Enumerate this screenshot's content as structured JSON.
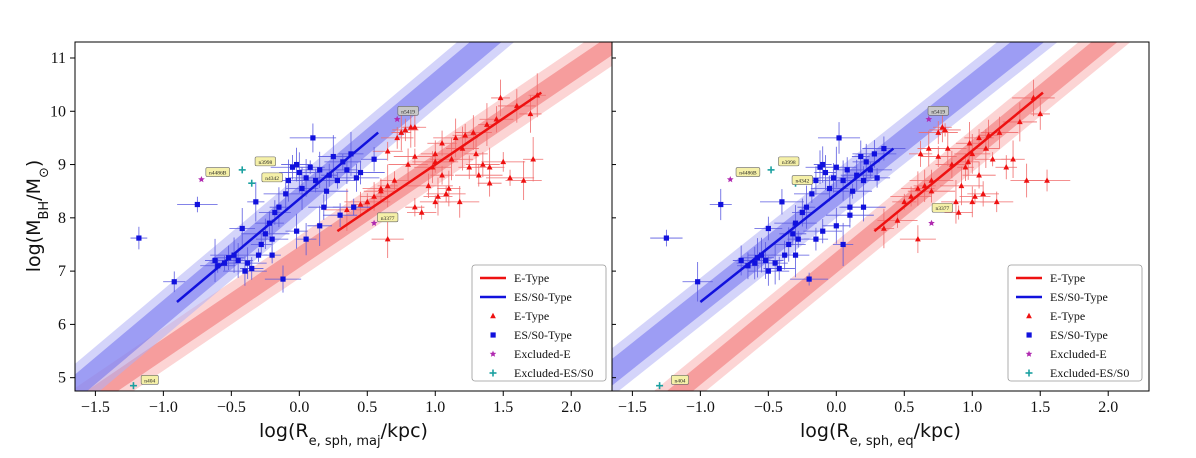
{
  "colors": {
    "e_type": "#ee1111",
    "s0_type": "#1111dd",
    "e_band_dark": "#f07070",
    "e_band_light": "#f9b0b0",
    "s0_band_dark": "#7070ee",
    "s0_band_light": "#b0b0f6",
    "excluded_e": "#b02ab0",
    "excluded_s0": "#1aa0a0",
    "errbar_e": "#f06b6b",
    "errbar_s0": "#5a5ae0",
    "annot_fill": "#f5f0a8"
  },
  "ylabel": "log(M_BH/M_⊙)",
  "chart_data": [
    {
      "type": "scatter",
      "panel": "left",
      "xlabel_main": "log(R",
      "xlabel_sub": "e, sph, maj",
      "xlabel_tail": "/kpc)",
      "xlim": [
        -1.65,
        2.3
      ],
      "ylim": [
        4.75,
        11.3
      ],
      "xticks": [
        -1.5,
        -1.0,
        -0.5,
        0.0,
        0.5,
        1.0,
        1.5,
        2.0
      ],
      "xtick_labels": [
        "−1.5",
        "−1.0",
        "−0.5",
        "0.0",
        "0.5",
        "1.0",
        "1.5",
        "2.0"
      ],
      "yticks": [
        5,
        6,
        7,
        8,
        9,
        10,
        11
      ],
      "ytick_labels": [
        "5",
        "6",
        "7",
        "8",
        "9",
        "10",
        "11"
      ],
      "fits": {
        "e": {
          "x": [
            0.28,
            1.78
          ],
          "y": [
            7.75,
            10.35
          ],
          "band_inner": 0.2,
          "band_outer": 0.4
        },
        "s0": {
          "x": [
            -0.9,
            0.58
          ],
          "y": [
            6.42,
            9.6
          ],
          "band_inner": 0.25,
          "band_outer": 0.45
        }
      },
      "legend": [
        "E-Type",
        "ES/S0-Type",
        "E-Type",
        "ES/S0-Type",
        "Excluded-E",
        "Excluded-ES/S0"
      ],
      "e_points": [
        [
          0.35,
          8.15
        ],
        [
          0.45,
          8.25
        ],
        [
          0.5,
          8.3
        ],
        [
          0.55,
          8.4
        ],
        [
          0.6,
          8.55
        ],
        [
          0.65,
          8.6
        ],
        [
          0.7,
          8.7
        ],
        [
          0.72,
          9.5
        ],
        [
          0.75,
          9.6
        ],
        [
          0.78,
          9.65
        ],
        [
          0.82,
          9.7
        ],
        [
          0.85,
          9.7
        ],
        [
          0.65,
          9.25
        ],
        [
          0.6,
          8.5
        ],
        [
          0.8,
          9.0
        ],
        [
          0.85,
          8.2
        ],
        [
          0.9,
          8.1
        ],
        [
          0.95,
          8.6
        ],
        [
          0.98,
          8.95
        ],
        [
          1.0,
          9.05
        ],
        [
          1.0,
          9.2
        ],
        [
          1.02,
          8.4
        ],
        [
          1.05,
          9.4
        ],
        [
          1.05,
          8.8
        ],
        [
          1.08,
          8.45
        ],
        [
          1.1,
          8.55
        ],
        [
          1.12,
          9.1
        ],
        [
          1.15,
          9.5
        ],
        [
          1.18,
          8.3
        ],
        [
          1.2,
          9.3
        ],
        [
          1.22,
          9.55
        ],
        [
          1.25,
          8.95
        ],
        [
          1.28,
          9.6
        ],
        [
          1.3,
          9.2
        ],
        [
          1.32,
          8.8
        ],
        [
          1.35,
          9.0
        ],
        [
          1.38,
          9.75
        ],
        [
          1.4,
          8.95
        ],
        [
          1.45,
          9.85
        ],
        [
          1.48,
          10.25
        ],
        [
          1.5,
          9.05
        ],
        [
          1.55,
          8.75
        ],
        [
          1.6,
          10.1
        ],
        [
          1.65,
          8.7
        ],
        [
          1.7,
          9.95
        ],
        [
          1.72,
          9.1
        ],
        [
          1.75,
          10.3
        ],
        [
          0.65,
          7.6
        ],
        [
          0.85,
          9.15
        ],
        [
          1.0,
          8.3
        ],
        [
          1.4,
          8.65
        ]
      ],
      "s0_points": [
        [
          -1.18,
          7.62
        ],
        [
          -0.92,
          6.8
        ],
        [
          -0.75,
          8.25
        ],
        [
          -0.62,
          7.2
        ],
        [
          -0.6,
          7.1
        ],
        [
          -0.55,
          7.15
        ],
        [
          -0.52,
          7.25
        ],
        [
          -0.48,
          7.3
        ],
        [
          -0.45,
          7.2
        ],
        [
          -0.42,
          7.8
        ],
        [
          -0.38,
          7.15
        ],
        [
          -0.35,
          7.05
        ],
        [
          -0.32,
          8.3
        ],
        [
          -0.3,
          7.3
        ],
        [
          -0.28,
          7.5
        ],
        [
          -0.25,
          7.7
        ],
        [
          -0.22,
          7.9
        ],
        [
          -0.2,
          7.6
        ],
        [
          -0.18,
          8.1
        ],
        [
          -0.15,
          8.2
        ],
        [
          -0.12,
          6.85
        ],
        [
          -0.1,
          8.45
        ],
        [
          -0.08,
          8.7
        ],
        [
          -0.05,
          8.95
        ],
        [
          -0.02,
          9.0
        ],
        [
          0.0,
          8.85
        ],
        [
          0.02,
          8.55
        ],
        [
          0.05,
          8.75
        ],
        [
          0.08,
          8.95
        ],
        [
          0.1,
          9.5
        ],
        [
          0.12,
          8.7
        ],
        [
          0.15,
          8.9
        ],
        [
          0.18,
          8.2
        ],
        [
          0.2,
          8.5
        ],
        [
          0.22,
          8.8
        ],
        [
          0.25,
          9.15
        ],
        [
          0.28,
          8.7
        ],
        [
          0.32,
          9.05
        ],
        [
          0.35,
          8.9
        ],
        [
          0.38,
          9.2
        ],
        [
          0.42,
          8.75
        ],
        [
          0.45,
          8.85
        ],
        [
          0.05,
          7.6
        ],
        [
          -0.02,
          7.75
        ],
        [
          0.15,
          7.85
        ],
        [
          0.3,
          8.05
        ],
        [
          0.4,
          8.2
        ],
        [
          0.55,
          9.1
        ],
        [
          -0.4,
          7.0
        ],
        [
          -0.2,
          7.3
        ]
      ],
      "excluded_e": [
        [
          -0.72,
          8.72
        ],
        [
          0.72,
          9.85
        ],
        [
          0.55,
          7.9
        ]
      ],
      "excluded_s0": [
        [
          -0.42,
          8.9
        ],
        [
          -0.35,
          8.65
        ],
        [
          -1.22,
          4.85
        ]
      ],
      "annotations": [
        {
          "text": "n5419",
          "x": 0.8,
          "y": 10.0
        },
        {
          "text": "n4486B",
          "x": -0.6,
          "y": 8.85
        },
        {
          "text": "n3998",
          "x": -0.25,
          "y": 9.05
        },
        {
          "text": "n4342",
          "x": -0.2,
          "y": 8.75
        },
        {
          "text": "n3377",
          "x": 0.65,
          "y": 8.0
        },
        {
          "text": "n404",
          "x": -1.1,
          "y": 4.95
        }
      ]
    },
    {
      "type": "scatter",
      "panel": "right",
      "xlabel_main": "log(R",
      "xlabel_sub": "e, sph, eq",
      "xlabel_tail": "/kpc)",
      "xlim": [
        -1.65,
        2.3
      ],
      "ylim": [
        4.75,
        11.3
      ],
      "xticks": [
        -1.5,
        -1.0,
        -0.5,
        0.0,
        0.5,
        1.0,
        1.5,
        2.0
      ],
      "xtick_labels": [
        "−1.5",
        "−1.0",
        "−0.5",
        "0.0",
        "0.5",
        "1.0",
        "1.5",
        "2.0"
      ],
      "yticks": [
        5,
        6,
        7,
        8,
        9,
        10,
        11
      ],
      "ytick_labels": [
        "5",
        "6",
        "7",
        "8",
        "9",
        "10",
        "11"
      ],
      "fits": {
        "e": {
          "x": [
            0.28,
            1.52
          ],
          "y": [
            7.75,
            10.35
          ],
          "band_inner": 0.2,
          "band_outer": 0.4
        },
        "s0": {
          "x": [
            -1.0,
            0.42
          ],
          "y": [
            6.42,
            9.3
          ],
          "band_inner": 0.25,
          "band_outer": 0.45
        }
      },
      "legend": [
        "E-Type",
        "ES/S0-Type",
        "E-Type",
        "ES/S0-Type",
        "Excluded-E",
        "Excluded-ES/S0"
      ],
      "e_points": [
        [
          0.35,
          7.8
        ],
        [
          0.45,
          7.95
        ],
        [
          0.5,
          8.3
        ],
        [
          0.55,
          8.4
        ],
        [
          0.6,
          8.55
        ],
        [
          0.62,
          9.2
        ],
        [
          0.65,
          8.6
        ],
        [
          0.68,
          9.3
        ],
        [
          0.7,
          8.7
        ],
        [
          0.75,
          9.6
        ],
        [
          0.78,
          9.7
        ],
        [
          0.8,
          9.65
        ],
        [
          0.82,
          9.3
        ],
        [
          0.85,
          9.0
        ],
        [
          0.88,
          8.3
        ],
        [
          0.9,
          8.1
        ],
        [
          0.92,
          8.6
        ],
        [
          0.95,
          8.95
        ],
        [
          0.97,
          9.05
        ],
        [
          0.98,
          9.4
        ],
        [
          1.0,
          9.2
        ],
        [
          1.02,
          8.4
        ],
        [
          1.05,
          9.5
        ],
        [
          1.05,
          8.8
        ],
        [
          1.08,
          8.45
        ],
        [
          1.1,
          9.3
        ],
        [
          1.12,
          9.55
        ],
        [
          1.15,
          9.1
        ],
        [
          1.18,
          8.3
        ],
        [
          1.2,
          9.6
        ],
        [
          1.25,
          8.95
        ],
        [
          1.3,
          9.1
        ],
        [
          1.35,
          9.8
        ],
        [
          1.4,
          8.7
        ],
        [
          1.45,
          10.25
        ],
        [
          1.5,
          9.95
        ],
        [
          1.55,
          8.7
        ],
        [
          0.6,
          7.6
        ],
        [
          0.75,
          9.15
        ],
        [
          1.0,
          8.3
        ],
        [
          0.7,
          8.5
        ]
      ],
      "s0_points": [
        [
          -1.25,
          7.62
        ],
        [
          -1.02,
          6.8
        ],
        [
          -0.85,
          8.25
        ],
        [
          -0.7,
          7.2
        ],
        [
          -0.65,
          7.1
        ],
        [
          -0.6,
          7.15
        ],
        [
          -0.58,
          7.25
        ],
        [
          -0.55,
          7.3
        ],
        [
          -0.52,
          7.2
        ],
        [
          -0.5,
          7.8
        ],
        [
          -0.45,
          7.15
        ],
        [
          -0.42,
          7.05
        ],
        [
          -0.4,
          8.3
        ],
        [
          -0.38,
          7.3
        ],
        [
          -0.35,
          7.5
        ],
        [
          -0.32,
          7.7
        ],
        [
          -0.3,
          7.9
        ],
        [
          -0.28,
          7.6
        ],
        [
          -0.25,
          8.1
        ],
        [
          -0.22,
          8.2
        ],
        [
          -0.2,
          6.85
        ],
        [
          -0.18,
          8.45
        ],
        [
          -0.15,
          8.7
        ],
        [
          -0.12,
          8.95
        ],
        [
          -0.1,
          9.0
        ],
        [
          -0.08,
          8.85
        ],
        [
          -0.05,
          8.55
        ],
        [
          -0.02,
          8.75
        ],
        [
          0.0,
          8.95
        ],
        [
          0.02,
          9.5
        ],
        [
          0.05,
          8.7
        ],
        [
          0.08,
          8.9
        ],
        [
          0.1,
          8.2
        ],
        [
          0.12,
          8.5
        ],
        [
          0.15,
          8.8
        ],
        [
          0.18,
          9.15
        ],
        [
          0.2,
          8.7
        ],
        [
          0.22,
          9.05
        ],
        [
          0.25,
          8.9
        ],
        [
          0.28,
          9.2
        ],
        [
          0.3,
          8.75
        ],
        [
          0.35,
          9.3
        ],
        [
          -0.15,
          7.6
        ],
        [
          -0.1,
          7.75
        ],
        [
          0.0,
          7.85
        ],
        [
          0.1,
          8.05
        ],
        [
          0.2,
          8.2
        ],
        [
          -0.5,
          7.0
        ],
        [
          -0.3,
          7.3
        ],
        [
          0.05,
          7.5
        ]
      ],
      "excluded_e": [
        [
          -0.78,
          8.72
        ],
        [
          0.68,
          9.85
        ],
        [
          0.7,
          7.9
        ]
      ],
      "excluded_s0": [
        [
          -0.48,
          8.9
        ],
        [
          -0.3,
          8.65
        ],
        [
          -1.3,
          4.85
        ]
      ],
      "annotations": [
        {
          "text": "n5419",
          "x": 0.75,
          "y": 10.0
        },
        {
          "text": "n4486B",
          "x": -0.65,
          "y": 8.85
        },
        {
          "text": "n3998",
          "x": -0.35,
          "y": 9.05
        },
        {
          "text": "n4342",
          "x": -0.25,
          "y": 8.7
        },
        {
          "text": "n3377",
          "x": 0.78,
          "y": 8.18
        },
        {
          "text": "n404",
          "x": -1.15,
          "y": 4.95
        }
      ]
    }
  ]
}
